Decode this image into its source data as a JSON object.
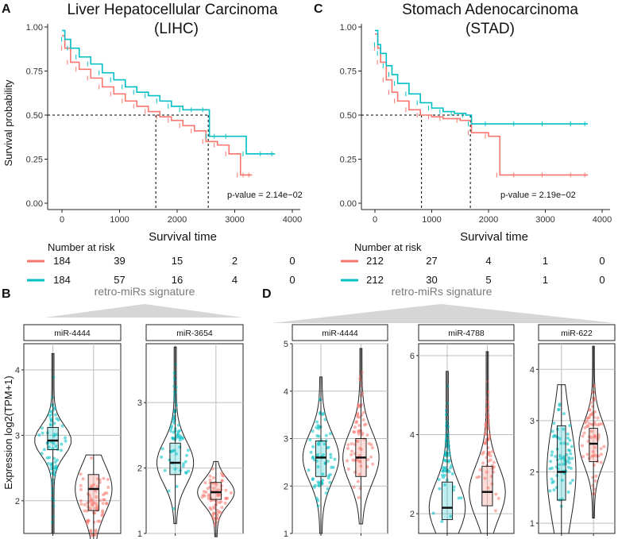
{
  "colors": {
    "red": "#F8766D",
    "teal": "#00BFC4"
  },
  "panel_labels": [
    "A",
    "C",
    "B",
    "D"
  ],
  "km": [
    {
      "title_line1": "Liver Hepatocellular Carcinoma",
      "title_line2": "(LIHC)",
      "ylabel": "Survival probability",
      "xlabel": "Survival time",
      "pvalue": "p-value = 2.14e−02",
      "risk_title": "Number at risk",
      "risk_red": [
        "184",
        "39",
        "15",
        "2",
        "0"
      ],
      "risk_teal": [
        "184",
        "57",
        "16",
        "4",
        "0"
      ],
      "xticks": [
        "0",
        "1000",
        "2000",
        "3000",
        "4000"
      ],
      "yticks": [
        "0.00",
        "0.25",
        "0.50",
        "0.75",
        "1.00"
      ],
      "median_red": 1630,
      "median_teal": 2540
    },
    {
      "title_line1": "Stomach Adenocarcinoma",
      "title_line2": "(STAD)",
      "ylabel": "",
      "xlabel": "Survival time",
      "pvalue": "p-value = 2.19e−02",
      "risk_title": "Number at risk",
      "risk_red": [
        "212",
        "27",
        "4",
        "1",
        "0"
      ],
      "risk_teal": [
        "212",
        "30",
        "5",
        "1",
        "0"
      ],
      "xticks": [
        "0",
        "1000",
        "2000",
        "3000",
        "4000"
      ],
      "yticks": [
        "0.00",
        "0.25",
        "0.50",
        "0.75",
        "1.00"
      ],
      "median_red": 820,
      "median_teal": 1680
    }
  ],
  "sig_label": "retro-miRs signature",
  "violin_ylabel": "Expression log2(TPM+1)",
  "chart_data": [
    {
      "type": "line",
      "title": "Liver Hepatocellular Carcinoma (LIHC)",
      "xlabel": "Survival time",
      "ylabel": "Survival probability",
      "xlim": [
        0,
        4000
      ],
      "ylim": [
        0,
        1
      ],
      "series": [
        {
          "color": "#F8766D",
          "x": [
            0,
            50,
            150,
            300,
            500,
            700,
            900,
            1100,
            1300,
            1500,
            1700,
            1900,
            2100,
            2300,
            2500,
            2700,
            2900,
            3100,
            3200,
            3300
          ],
          "y": [
            0.95,
            0.88,
            0.8,
            0.76,
            0.71,
            0.66,
            0.62,
            0.58,
            0.55,
            0.52,
            0.49,
            0.47,
            0.44,
            0.41,
            0.35,
            0.33,
            0.28,
            0.16,
            0.16,
            0.16
          ]
        },
        {
          "color": "#00BFC4",
          "x": [
            0,
            50,
            150,
            300,
            500,
            700,
            900,
            1100,
            1300,
            1500,
            1700,
            1900,
            2100,
            2300,
            2500,
            2560,
            2700,
            2900,
            3200,
            3500,
            3700
          ],
          "y": [
            0.98,
            0.93,
            0.88,
            0.83,
            0.79,
            0.74,
            0.7,
            0.66,
            0.63,
            0.61,
            0.58,
            0.55,
            0.53,
            0.53,
            0.53,
            0.38,
            0.38,
            0.38,
            0.28,
            0.28,
            0.28
          ]
        }
      ]
    },
    {
      "type": "line",
      "title": "Stomach Adenocarcinoma (STAD)",
      "xlabel": "Survival time",
      "ylabel": "",
      "xlim": [
        0,
        4000
      ],
      "ylim": [
        0,
        1
      ],
      "series": [
        {
          "color": "#F8766D",
          "x": [
            0,
            50,
            100,
            200,
            300,
            400,
            600,
            800,
            1000,
            1200,
            1500,
            1700,
            2000,
            2200,
            2500,
            3000,
            3500,
            3750
          ],
          "y": [
            0.96,
            0.88,
            0.8,
            0.7,
            0.63,
            0.58,
            0.53,
            0.5,
            0.49,
            0.48,
            0.47,
            0.4,
            0.38,
            0.16,
            0.16,
            0.16,
            0.16,
            0.16
          ]
        },
        {
          "color": "#00BFC4",
          "x": [
            0,
            50,
            100,
            200,
            300,
            400,
            600,
            800,
            1000,
            1200,
            1400,
            1600,
            1700,
            2000,
            2500,
            3000,
            3500,
            3750
          ],
          "y": [
            0.98,
            0.9,
            0.85,
            0.78,
            0.73,
            0.68,
            0.62,
            0.57,
            0.54,
            0.52,
            0.51,
            0.5,
            0.45,
            0.45,
            0.45,
            0.45,
            0.45,
            0.45
          ]
        }
      ]
    },
    {
      "type": "violin",
      "panel": "B",
      "facets": [
        {
          "name": "miR-4444",
          "ylim": [
            1.5,
            4.4
          ],
          "yticks": [
            2,
            3,
            4
          ],
          "groups": [
            {
              "color": "#00BFC4",
              "median": 2.92,
              "q1": 2.78,
              "q3": 3.12,
              "min": 1.5,
              "max": 4.25
            },
            {
              "color": "#F8766D",
              "median": 2.18,
              "q1": 1.85,
              "q3": 2.4,
              "min": 1.25,
              "max": 2.7
            }
          ]
        },
        {
          "name": "miR-3654",
          "ylim": [
            1,
            3.9
          ],
          "yticks": [
            1,
            2,
            3
          ],
          "groups": [
            {
              "color": "#00BFC4",
              "median": 2.08,
              "q1": 1.9,
              "q3": 2.38,
              "min": 1.15,
              "max": 3.85
            },
            {
              "color": "#F8766D",
              "median": 1.63,
              "q1": 1.52,
              "q3": 1.78,
              "min": 0.95,
              "max": 2.1
            }
          ]
        }
      ]
    },
    {
      "type": "violin",
      "panel": "D",
      "facets": [
        {
          "name": "miR-4444",
          "ylim": [
            1,
            5
          ],
          "yticks": [
            1,
            2,
            3,
            4,
            5
          ],
          "groups": [
            {
              "color": "#00BFC4",
              "median": 2.6,
              "q1": 2.2,
              "q3": 2.95,
              "min": 1,
              "max": 4.3
            },
            {
              "color": "#F8766D",
              "median": 2.6,
              "q1": 2.2,
              "q3": 3.0,
              "min": 1.2,
              "max": 4.9
            }
          ]
        },
        {
          "name": "miR-4788",
          "ylim": [
            1.5,
            6.3
          ],
          "yticks": [
            2,
            4,
            6
          ],
          "groups": [
            {
              "color": "#00BFC4",
              "median": 2.15,
              "q1": 1.85,
              "q3": 2.8,
              "min": 1.5,
              "max": 5.6
            },
            {
              "color": "#F8766D",
              "median": 2.55,
              "q1": 2.2,
              "q3": 3.2,
              "min": 1.5,
              "max": 6.1
            }
          ]
        },
        {
          "name": "miR-622",
          "ylim": [
            0.8,
            4.5
          ],
          "yticks": [
            1,
            2,
            3,
            4
          ],
          "groups": [
            {
              "color": "#00BFC4",
              "median": 2.0,
              "q1": 1.45,
              "q3": 2.9,
              "min": 0.8,
              "max": 3.7
            },
            {
              "color": "#F8766D",
              "median": 2.55,
              "q1": 2.2,
              "q3": 2.85,
              "min": 1.1,
              "max": 4.45
            }
          ]
        }
      ]
    }
  ]
}
